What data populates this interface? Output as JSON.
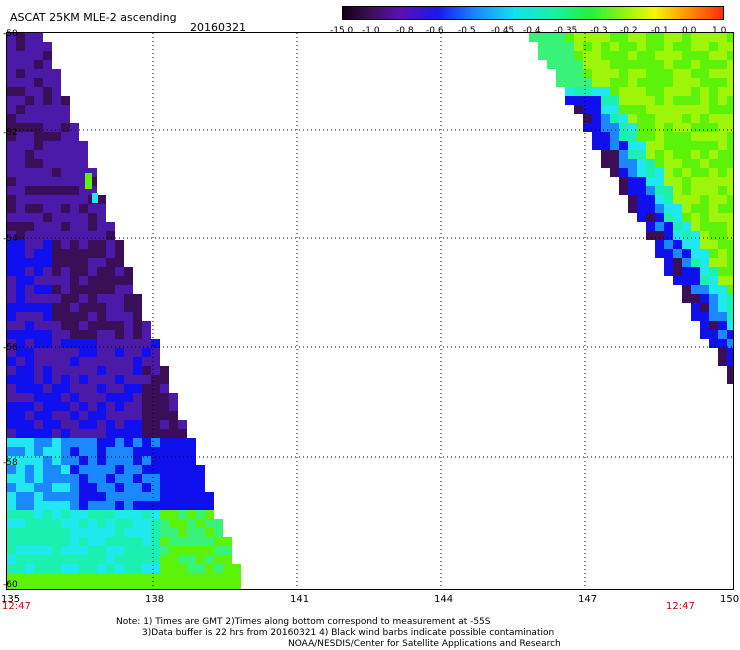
{
  "header": {
    "title": "ASCAT 25KM MLE-2 ascending",
    "date": "20160321"
  },
  "colorbar": {
    "labels": [
      "-15.0",
      "-1.0",
      "-0.8",
      "-0.6",
      "-0.5",
      "-0.45",
      "-0.4",
      "-0.35",
      "-0.3",
      "-0.2",
      "-0.1",
      "0.0",
      "1.0"
    ]
  },
  "axes": {
    "y_labels": [
      "-50",
      "-52",
      "-54",
      "-56",
      "-58",
      "-60"
    ],
    "x_labels": [
      "135",
      "138",
      "141",
      "144",
      "147",
      "150"
    ]
  },
  "times": {
    "left": "12:47",
    "right": "12:47"
  },
  "notes": {
    "line1": "Note: 1) Times are GMT 2)Times along bottom correspond to measurement at -55S",
    "line2": "3)Data buffer is 22 hrs from 20160321 4) Black wind barbs indicate possible contamination",
    "line3": "NOAA/NESDIS/Center for Satellite Applications and Research"
  },
  "colors": {
    "very_low": "#3a0f58",
    "low": "#4b1aa8",
    "blue": "#1010ee",
    "light_blue": "#1a88ff",
    "cyan": "#20e8ee",
    "teal": "#1cf0b0",
    "green": "#38f27a",
    "lime": "#5cf20a",
    "yellow_green": "#9ff50a"
  }
}
